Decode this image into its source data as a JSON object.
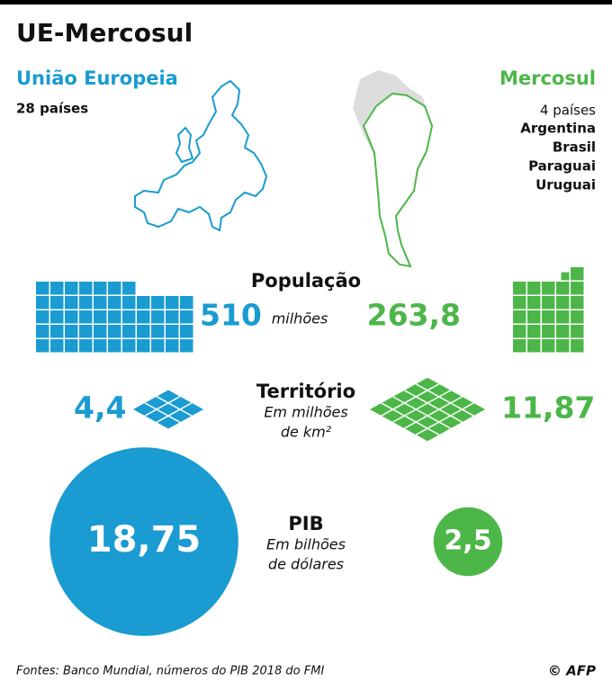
{
  "header": {
    "title": "UE-Mercosul"
  },
  "eu": {
    "name": "União Europeia",
    "count": "28 países",
    "color": "#1a9bd1"
  },
  "mercosul": {
    "name": "Mercosul",
    "count": "4 países",
    "members": [
      "Argentina",
      "Brasil",
      "Paraguai",
      "Uruguai"
    ],
    "color": "#4cb748"
  },
  "metrics": [
    {
      "title": "População",
      "unit": [
        "milhões"
      ],
      "eu": {
        "value": 510,
        "label": "510"
      },
      "mercosul": {
        "value": 263.8,
        "label": "263,8"
      }
    },
    {
      "title": "Território",
      "unit": [
        "Em milhões",
        "de km²"
      ],
      "eu": {
        "value": 4.4,
        "label": "4,4"
      },
      "mercosul": {
        "value": 11.87,
        "label": "11,87"
      }
    },
    {
      "title": "PIB",
      "unit": [
        "Em bilhões",
        "de dólares"
      ],
      "eu": {
        "value": 18.75,
        "label": "18,75"
      },
      "mercosul": {
        "value": 2.5,
        "label": "2,5"
      }
    }
  ],
  "footer": {
    "source": "Fontes: Banco Mundial, números do PIB 2018 do FMI",
    "credit": "© AFP"
  }
}
